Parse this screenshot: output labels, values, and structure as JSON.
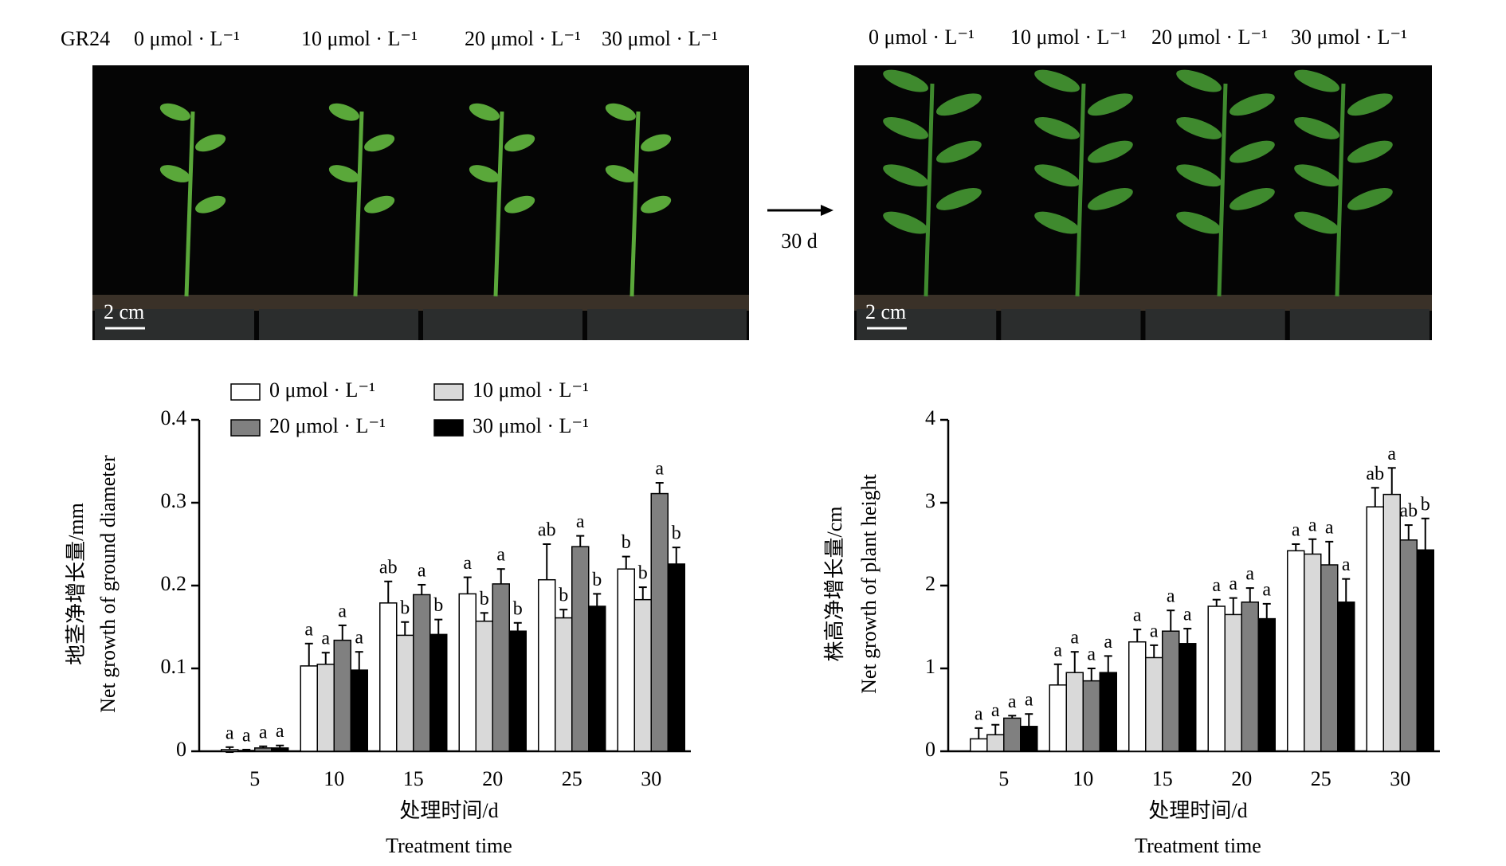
{
  "panels": {
    "treatment": "GR24",
    "before_labels": [
      "0 μmol · L⁻¹",
      "10 μmol · L⁻¹",
      "20 μmol · L⁻¹",
      "30 μmol · L⁻¹"
    ],
    "after_labels": [
      "0 μmol · L⁻¹",
      "10 μmol · L⁻¹",
      "20 μmol · L⁻¹",
      "30 μmol · L⁻¹"
    ],
    "arrow_label": "30 d",
    "scale_bar": "2 cm"
  },
  "chart_data": [
    {
      "type": "bar",
      "y_label_cn": "地茎净增长量/mm",
      "y_label_en": "Net growth of ground diameter",
      "x_label_cn": "处理时间/d",
      "x_label_en": "Treatment time",
      "categories": [
        "5",
        "10",
        "15",
        "20",
        "25",
        "30"
      ],
      "ylim": [
        0,
        0.4
      ],
      "yticks": [
        0,
        0.1,
        0.2,
        0.3,
        0.4
      ],
      "series": [
        {
          "name": "0 μmol · L⁻¹",
          "color": "#ffffff",
          "values": [
            0.002,
            0.103,
            0.179,
            0.19,
            0.207,
            0.22
          ],
          "errors": [
            0.003,
            0.027,
            0.026,
            0.02,
            0.043,
            0.015
          ],
          "letters": [
            "a",
            "a",
            "ab",
            "a",
            "ab",
            "b"
          ]
        },
        {
          "name": "10 μmol · L⁻¹",
          "color": "#d9d9d9",
          "values": [
            0.001,
            0.105,
            0.14,
            0.157,
            0.161,
            0.183
          ],
          "errors": [
            0.001,
            0.014,
            0.016,
            0.01,
            0.01,
            0.015
          ],
          "letters": [
            "a",
            "a",
            "b",
            "b",
            "b",
            "b"
          ]
        },
        {
          "name": "20 μmol · L⁻¹",
          "color": "#808080",
          "values": [
            0.004,
            0.134,
            0.189,
            0.202,
            0.247,
            0.311
          ],
          "errors": [
            0.002,
            0.018,
            0.012,
            0.018,
            0.013,
            0.013
          ],
          "letters": [
            "a",
            "a",
            "a",
            "a",
            "a",
            "a"
          ]
        },
        {
          "name": "30 μmol · L⁻¹",
          "color": "#000000",
          "values": [
            0.004,
            0.098,
            0.141,
            0.145,
            0.175,
            0.226
          ],
          "errors": [
            0.003,
            0.022,
            0.018,
            0.01,
            0.015,
            0.02
          ],
          "letters": [
            "a",
            "a",
            "b",
            "b",
            "b",
            "b"
          ]
        }
      ]
    },
    {
      "type": "bar",
      "y_label_cn": "株高净增长量/cm",
      "y_label_en": "Net growth of plant height",
      "x_label_cn": "处理时间/d",
      "x_label_en": "Treatment time",
      "categories": [
        "5",
        "10",
        "15",
        "20",
        "25",
        "30"
      ],
      "ylim": [
        0,
        4
      ],
      "yticks": [
        0,
        1,
        2,
        3,
        4
      ],
      "series": [
        {
          "color": "#ffffff",
          "values": [
            0.15,
            0.8,
            1.32,
            1.75,
            2.42,
            2.95
          ],
          "errors": [
            0.13,
            0.25,
            0.15,
            0.08,
            0.08,
            0.23
          ],
          "letters": [
            "a",
            "a",
            "a",
            "a",
            "a",
            "ab"
          ]
        },
        {
          "color": "#d9d9d9",
          "values": [
            0.2,
            0.95,
            1.13,
            1.65,
            2.38,
            3.1
          ],
          "errors": [
            0.12,
            0.25,
            0.15,
            0.2,
            0.18,
            0.32
          ],
          "letters": [
            "a",
            "a",
            "a",
            "a",
            "a",
            "a"
          ]
        },
        {
          "color": "#808080",
          "values": [
            0.4,
            0.85,
            1.45,
            1.8,
            2.25,
            2.55
          ],
          "errors": [
            0.03,
            0.15,
            0.25,
            0.17,
            0.28,
            0.18
          ],
          "letters": [
            "a",
            "a",
            "a",
            "a",
            "a",
            "ab"
          ]
        },
        {
          "color": "#000000",
          "values": [
            0.3,
            0.95,
            1.3,
            1.6,
            1.8,
            2.43
          ],
          "errors": [
            0.15,
            0.2,
            0.18,
            0.18,
            0.28,
            0.38
          ],
          "letters": [
            "a",
            "a",
            "a",
            "a",
            "a",
            "b"
          ]
        }
      ]
    }
  ]
}
